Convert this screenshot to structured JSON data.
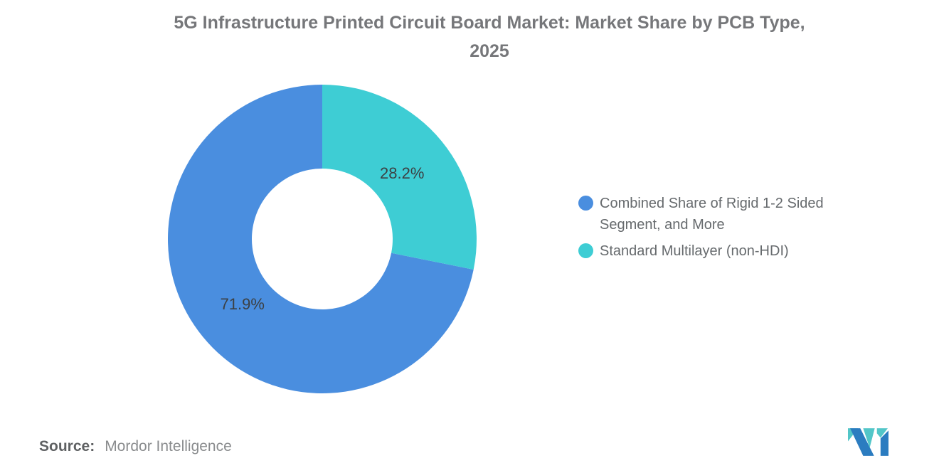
{
  "header": {
    "line1": "5G Infrastructure Printed Circuit Board Market: Market Share by PCB Type,",
    "line2": "2025"
  },
  "chart_data": {
    "type": "pie",
    "subtype": "donut",
    "title": "5G Infrastructure Printed Circuit Board Market: Market Share by PCB Type, 2025",
    "unit": "%",
    "donut_hole_ratio": 0.46,
    "start_angle": "12 o'clock",
    "direction": "counter-clockwise",
    "legend_position": "right",
    "grid": false,
    "segments": [
      {
        "label": "Combined Share of Rigid 1-2 Sided Segment, and More",
        "value": 71.9,
        "display": "71.9%",
        "color": "#4A8EDF"
      },
      {
        "label": "Standard Multilayer (non-HDI)",
        "value": 28.2,
        "display": "28.2%",
        "color": "#3ECDD4"
      }
    ]
  },
  "colors": {
    "background": "#FFFFFF",
    "title_text": "#76777A",
    "slice_label_text": "#3C4043",
    "legend_text": "#666A6D",
    "source_label_text": "#5F6163",
    "source_value_text": "#8A8C8E"
  },
  "source": {
    "label": "Source:",
    "value": "Mordor Intelligence"
  },
  "logo": {
    "name": "mordor-intelligence-logo",
    "blue": "#2B7CC0",
    "teal": "#52C6C8"
  }
}
